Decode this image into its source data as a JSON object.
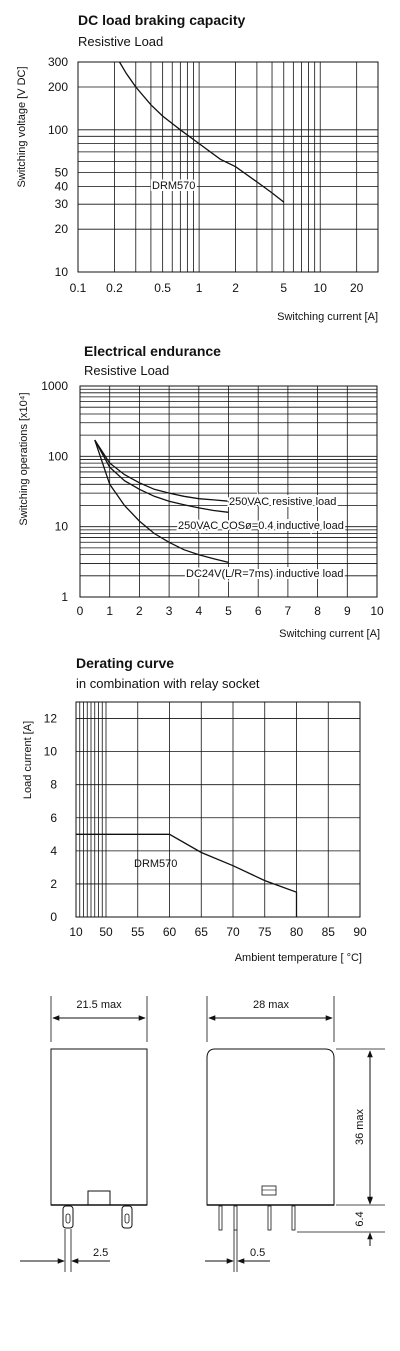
{
  "chart_data": [
    {
      "type": "line",
      "title": "DC load braking capacity",
      "subtitle": "Resistive Load",
      "xlabel": "Switching current [A]",
      "ylabel": "Switching voltage [V DC]",
      "x_scale": "log",
      "y_scale": "log",
      "xlim": [
        0.1,
        30
      ],
      "ylim": [
        10,
        300
      ],
      "x_tick_labels": [
        "0.1",
        "0.2",
        "0.5",
        "1",
        "2",
        "5",
        "10",
        "20"
      ],
      "x_ticks": [
        0.1,
        0.2,
        0.5,
        1,
        2,
        5,
        10,
        20
      ],
      "y_tick_labels": [
        "300",
        "200",
        "100",
        "50",
        "40",
        "30",
        "20",
        "10"
      ],
      "y_ticks": [
        300,
        200,
        100,
        50,
        40,
        30,
        20,
        10
      ],
      "grid": true,
      "series": [
        {
          "name": "DRM570",
          "x": [
            0.22,
            0.25,
            0.3,
            0.4,
            0.5,
            0.7,
            1,
            1.5,
            2,
            3,
            4,
            5
          ],
          "y": [
            300,
            250,
            200,
            150,
            125,
            100,
            80,
            62,
            55,
            43,
            36,
            31
          ]
        }
      ]
    },
    {
      "type": "line",
      "title": "Electrical endurance",
      "subtitle": "Resistive Load",
      "xlabel": "Switching current [A]",
      "ylabel": "Switching operations [x10⁴]",
      "y_scale": "log",
      "xlim": [
        0,
        10
      ],
      "ylim": [
        1,
        1000
      ],
      "x_tick_labels": [
        "0",
        "1",
        "2",
        "3",
        "4",
        "5",
        "6",
        "7",
        "8",
        "9",
        "10"
      ],
      "y_tick_labels": [
        "1000",
        "100",
        "10",
        "1"
      ],
      "grid": true,
      "series": [
        {
          "name": "250VAC resistive load",
          "x": [
            0.5,
            1,
            1.5,
            2,
            2.5,
            3,
            3.5,
            4,
            4.5,
            5
          ],
          "y": [
            170,
            80,
            55,
            42,
            34,
            30,
            27,
            25,
            24,
            23
          ]
        },
        {
          "name": "250VAC COSø=0.4 inductive load",
          "x": [
            0.5,
            1,
            1.5,
            2,
            2.5,
            3,
            3.5,
            4,
            4.5,
            5
          ],
          "y": [
            170,
            70,
            45,
            34,
            27,
            23,
            20.5,
            18.5,
            17,
            16
          ]
        },
        {
          "name": "DC24V(L/R=7ms) inductive load",
          "x": [
            0.5,
            1,
            1.5,
            2,
            2.5,
            3,
            3.5,
            4,
            4.5,
            5
          ],
          "y": [
            170,
            40,
            20,
            12,
            8,
            6,
            4.7,
            4,
            3.5,
            3.1
          ]
        }
      ]
    },
    {
      "type": "line",
      "title": "Derating curve",
      "subtitle": "in combination with relay socket",
      "xlabel": "Ambient temperature [ °C]",
      "ylabel": "Load current [A]",
      "xlim": [
        10,
        90
      ],
      "ylim": [
        0,
        13
      ],
      "x_tick_labels": [
        "10",
        "50",
        "55",
        "60",
        "65",
        "70",
        "75",
        "80",
        "85",
        "90"
      ],
      "y_tick_labels": [
        "12",
        "10",
        "8",
        "6",
        "4",
        "2",
        "0"
      ],
      "grid": true,
      "series": [
        {
          "name": "DRM570",
          "x": [
            10,
            60,
            65,
            70,
            75,
            80,
            80
          ],
          "y": [
            5,
            5,
            3.9,
            3.1,
            2.2,
            1.5,
            0
          ]
        }
      ]
    }
  ],
  "dimensions": {
    "front_width": "21.5 max",
    "side_width": "28 max",
    "height": "36 max",
    "pin_length": "6.4",
    "pin_pitch": "2.5",
    "pin_thickness": "0.5"
  }
}
